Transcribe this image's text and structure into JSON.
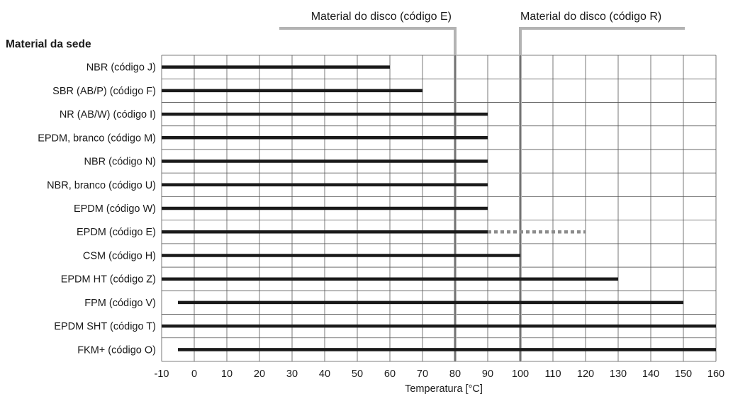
{
  "chart_data": {
    "type": "bar",
    "orientation": "horizontal-range",
    "title": "Material da sede",
    "xlabel": "Temperatura [°C]",
    "xlim": [
      -10,
      160
    ],
    "xticks": [
      -10,
      0,
      10,
      20,
      30,
      40,
      50,
      60,
      70,
      80,
      90,
      100,
      110,
      120,
      130,
      140,
      150,
      160
    ],
    "grid": true,
    "categories": [
      "NBR (código J)",
      "SBR (AB/P) (código F)",
      "NR (AB/W) (código I)",
      "EPDM, branco (código M)",
      "NBR (código N)",
      "NBR, branco (código U)",
      "EPDM (código W)",
      "EPDM (código E)",
      "CSM (código H)",
      "EPDM HT (código Z)",
      "FPM (código V)",
      "EPDM SHT (código T)",
      "FKM+ (código O)"
    ],
    "ranges": [
      {
        "min": -10,
        "max": 60
      },
      {
        "min": -10,
        "max": 70
      },
      {
        "min": -10,
        "max": 90
      },
      {
        "min": -10,
        "max": 90
      },
      {
        "min": -10,
        "max": 90
      },
      {
        "min": -10,
        "max": 90
      },
      {
        "min": -10,
        "max": 90
      },
      {
        "min": -10,
        "max": 90,
        "dashed_max": 120
      },
      {
        "min": -10,
        "max": 100
      },
      {
        "min": -10,
        "max": 130
      },
      {
        "min": -5,
        "max": 150
      },
      {
        "min": -10,
        "max": 160
      },
      {
        "min": -5,
        "max": 160
      }
    ],
    "reference_lines": [
      {
        "label": "Material do disco (código E)",
        "x": 80
      },
      {
        "label": "Material do disco (código R)",
        "x": 100
      }
    ],
    "colors": {
      "bar": "#1a1a1a",
      "dashed": "#8c8c8c",
      "reference": "#b3b3b3",
      "grid": "#555555"
    }
  }
}
